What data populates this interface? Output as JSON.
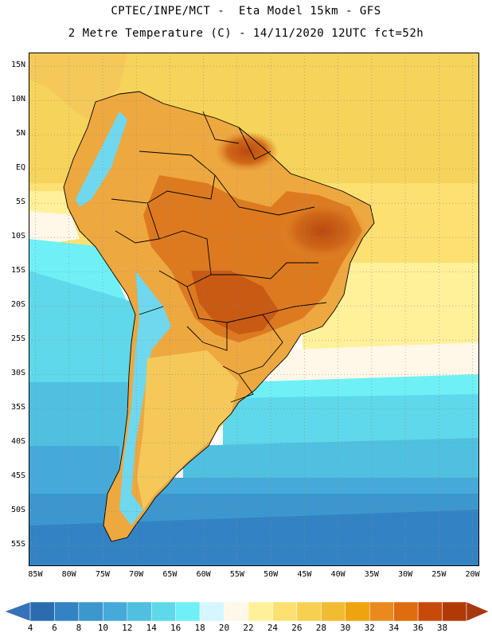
{
  "header": {
    "line1": "CPTEC/INPE/MCT -  Eta Model 15km - GFS",
    "line2": "2 Metre Temperature (C) - 14/11/2020 12UTC fct=52h"
  },
  "map": {
    "projection": "lat-lon",
    "lon_range": [
      -86,
      -19
    ],
    "lat_range": [
      -58,
      17
    ],
    "lat_ticks": [
      {
        "value": 15,
        "label": "15N"
      },
      {
        "value": 10,
        "label": "10N"
      },
      {
        "value": 5,
        "label": "5N"
      },
      {
        "value": 0,
        "label": "EQ"
      },
      {
        "value": -5,
        "label": "5S"
      },
      {
        "value": -10,
        "label": "10S"
      },
      {
        "value": -15,
        "label": "15S"
      },
      {
        "value": -20,
        "label": "20S"
      },
      {
        "value": -25,
        "label": "25S"
      },
      {
        "value": -30,
        "label": "30S"
      },
      {
        "value": -35,
        "label": "35S"
      },
      {
        "value": -40,
        "label": "40S"
      },
      {
        "value": -45,
        "label": "45S"
      },
      {
        "value": -50,
        "label": "50S"
      },
      {
        "value": -55,
        "label": "55S"
      }
    ],
    "lon_ticks": [
      {
        "value": -85,
        "label": "85W"
      },
      {
        "value": -80,
        "label": "80W"
      },
      {
        "value": -75,
        "label": "75W"
      },
      {
        "value": -70,
        "label": "70W"
      },
      {
        "value": -65,
        "label": "65W"
      },
      {
        "value": -60,
        "label": "60W"
      },
      {
        "value": -55,
        "label": "55W"
      },
      {
        "value": -50,
        "label": "50W"
      },
      {
        "value": -45,
        "label": "45W"
      },
      {
        "value": -40,
        "label": "40W"
      },
      {
        "value": -35,
        "label": "35W"
      },
      {
        "value": -30,
        "label": "30W"
      },
      {
        "value": -25,
        "label": "25W"
      },
      {
        "value": -20,
        "label": "20W"
      }
    ]
  },
  "colorbar": {
    "labels": [
      "4",
      "6",
      "8",
      "10",
      "12",
      "14",
      "16",
      "18",
      "20",
      "22",
      "24",
      "26",
      "28",
      "30",
      "32",
      "34",
      "36",
      "38"
    ],
    "colors": [
      "#2b6cb0",
      "#3383c4",
      "#3c97cf",
      "#45aad9",
      "#50c0e0",
      "#5ed8ea",
      "#6ff0f6",
      "#d6f6ff",
      "#fff8e8",
      "#fff19a",
      "#fde072",
      "#f7d052",
      "#f2bc32",
      "#eea40e",
      "#ea8a1e",
      "#e06c10",
      "#c84a08",
      "#b03a06"
    ],
    "left_arrow_color": "#3572b8",
    "right_arrow_color": "#a83810"
  },
  "field_colors": {
    "ocean_north": "#f6d35a",
    "ocean_band_24": "#fde072",
    "ocean_band_22": "#fff19a",
    "ocean_band_20": "#fff8e8",
    "ocean_band_16": "#6ff0f6",
    "ocean_band_14": "#5ed8ea",
    "ocean_band_12": "#50c0e0",
    "ocean_band_10": "#45aad9",
    "ocean_band_8": "#3c97cf",
    "ocean_band_6": "#3383c4",
    "land_warm": "#eea840",
    "land_hot": "#dd7a20",
    "land_hottest": "#c85a14",
    "land_mild": "#f5c85a",
    "andes_cold": "#6fd8ee"
  }
}
